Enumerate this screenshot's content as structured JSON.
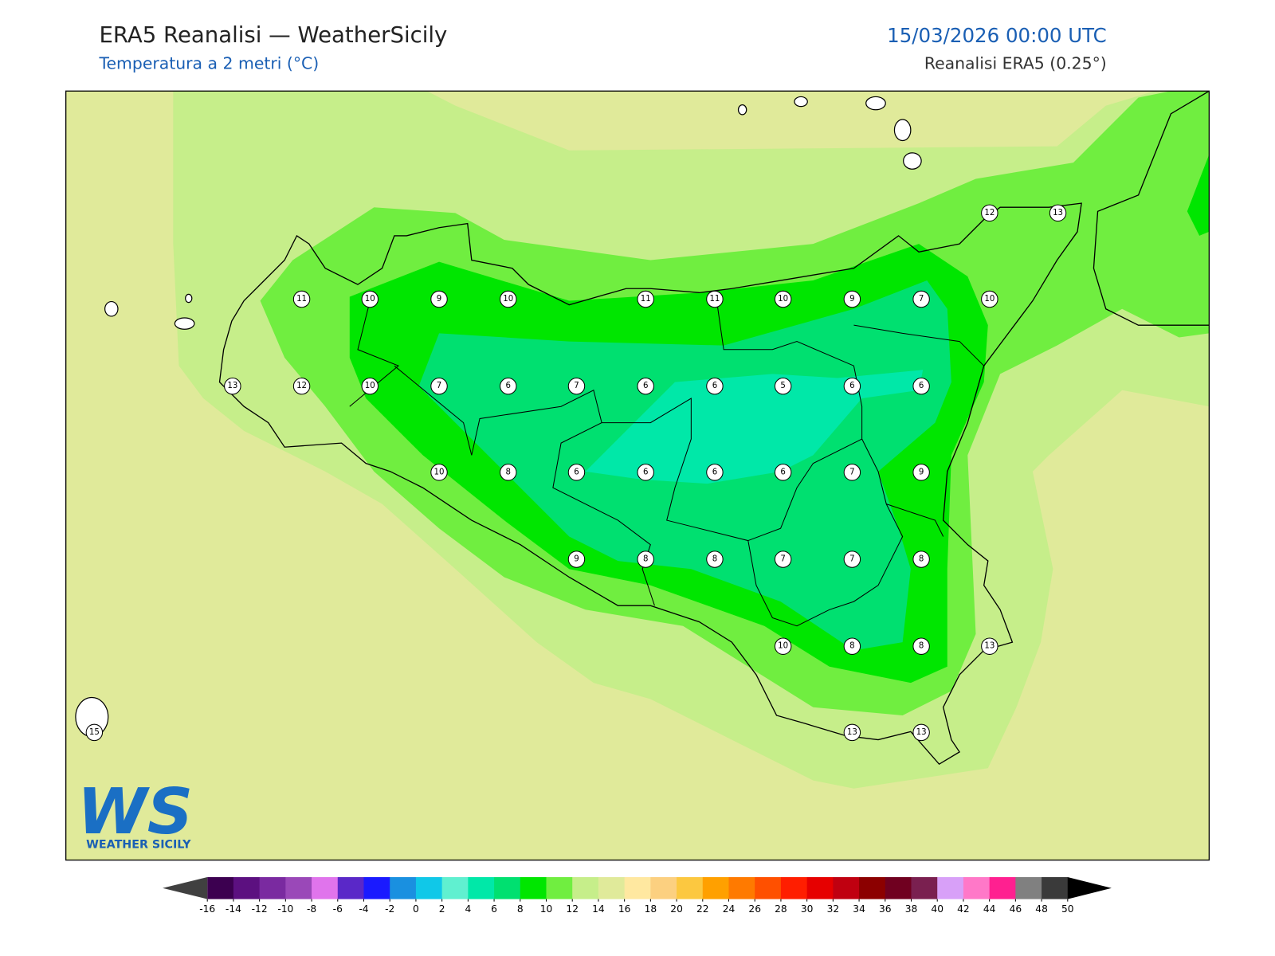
{
  "header": {
    "title": "ERA5 Reanalisi — WeatherSicily",
    "subtitle": "Temperatura a 2 metri (°C)",
    "datetime": "15/03/2026 00:00 UTC",
    "source": "Reanalisi ERA5 (0.25°)"
  },
  "map": {
    "stations": [
      12,
      13,
      11,
      10,
      9,
      10,
      11,
      11,
      10,
      9,
      7,
      10,
      13,
      12,
      10,
      7,
      6,
      7,
      6,
      6,
      5,
      6,
      6,
      10,
      8,
      6,
      6,
      6,
      6,
      7,
      9,
      9,
      8,
      8,
      7,
      7,
      8,
      10,
      8,
      8,
      13,
      15,
      13,
      13
    ]
  },
  "logo": {
    "mark": "WS",
    "name": "WEATHER SICILY"
  },
  "colorbar": {
    "ticks": [
      -16,
      -14,
      -12,
      -10,
      -8,
      -6,
      -4,
      -2,
      0,
      2,
      4,
      6,
      8,
      10,
      12,
      14,
      16,
      18,
      20,
      22,
      24,
      26,
      28,
      30,
      32,
      34,
      36,
      38,
      40,
      42,
      44,
      46,
      48,
      50
    ],
    "colors": [
      "#3c0050",
      "#5c1080",
      "#7a2aa0",
      "#9a48b8",
      "#e074ec",
      "#5a28c8",
      "#1a1aff",
      "#1a90e0",
      "#10c8e8",
      "#60f0d0",
      "#00e8a8",
      "#00e070",
      "#00e600",
      "#70ee40",
      "#c6ee8a",
      "#e0ea9a",
      "#ffe8a0",
      "#fcd080",
      "#fcc840",
      "#ffa000",
      "#ff7a00",
      "#ff5000",
      "#ff1e00",
      "#e60000",
      "#c00010",
      "#8c0000",
      "#700020",
      "#7a2050",
      "#d8a0f8",
      "#ff78c8",
      "#ff2090",
      "#808080",
      "#3a3a3a"
    ],
    "under_color": "#404040",
    "over_color": "#000000"
  }
}
